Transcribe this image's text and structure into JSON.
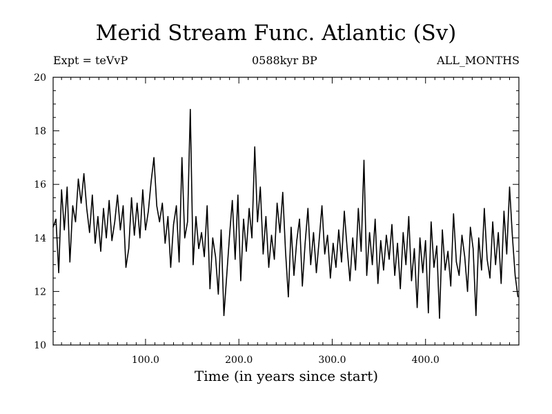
{
  "chart_data": {
    "type": "line",
    "title": "Merid Stream Func. Atlantic (Sv)",
    "subtitle_left": "Expt = teVvP",
    "subtitle_center": "0588kyr BP",
    "subtitle_right": "ALL_MONTHS",
    "xlabel": "Time (in years since start)",
    "ylabel": "",
    "xlim": [
      1,
      500
    ],
    "ylim": [
      10,
      20
    ],
    "xticks": [
      100,
      200,
      300,
      400
    ],
    "xtick_labels": [
      "100.0",
      "200.0",
      "300.0",
      "400.0"
    ],
    "yticks": [
      10,
      12,
      14,
      16,
      18,
      20
    ],
    "ytick_labels": [
      "10",
      "12",
      "14",
      "16",
      "18",
      "20"
    ],
    "grid": false,
    "series": [
      {
        "color": "#000000",
        "points": [
          [
            1,
            14.4
          ],
          [
            4,
            14.7
          ],
          [
            7,
            12.7
          ],
          [
            10,
            15.8
          ],
          [
            13,
            14.3
          ],
          [
            16,
            15.9
          ],
          [
            19,
            13.1
          ],
          [
            22,
            15.2
          ],
          [
            25,
            14.6
          ],
          [
            28,
            16.2
          ],
          [
            31,
            15.3
          ],
          [
            34,
            16.4
          ],
          [
            37,
            15.1
          ],
          [
            40,
            14.2
          ],
          [
            43,
            15.6
          ],
          [
            46,
            13.8
          ],
          [
            49,
            14.8
          ],
          [
            52,
            13.5
          ],
          [
            55,
            15.1
          ],
          [
            58,
            14.0
          ],
          [
            61,
            15.4
          ],
          [
            64,
            13.9
          ],
          [
            67,
            14.6
          ],
          [
            70,
            15.6
          ],
          [
            73,
            14.3
          ],
          [
            76,
            15.2
          ],
          [
            79,
            12.9
          ],
          [
            82,
            13.6
          ],
          [
            85,
            15.5
          ],
          [
            88,
            14.1
          ],
          [
            91,
            15.3
          ],
          [
            94,
            14.0
          ],
          [
            97,
            15.8
          ],
          [
            100,
            14.3
          ],
          [
            103,
            15.0
          ],
          [
            106,
            16.1
          ],
          [
            109,
            17.0
          ],
          [
            112,
            15.2
          ],
          [
            115,
            14.6
          ],
          [
            118,
            15.3
          ],
          [
            121,
            13.8
          ],
          [
            124,
            14.8
          ],
          [
            127,
            12.9
          ],
          [
            130,
            14.5
          ],
          [
            133,
            15.2
          ],
          [
            136,
            13.1
          ],
          [
            139,
            17.0
          ],
          [
            142,
            14.0
          ],
          [
            145,
            14.6
          ],
          [
            148,
            18.8
          ],
          [
            151,
            13.0
          ],
          [
            154,
            14.8
          ],
          [
            157,
            13.6
          ],
          [
            160,
            14.2
          ],
          [
            163,
            13.3
          ],
          [
            166,
            15.2
          ],
          [
            169,
            12.1
          ],
          [
            172,
            14.0
          ],
          [
            175,
            13.3
          ],
          [
            178,
            11.9
          ],
          [
            181,
            14.3
          ],
          [
            184,
            11.1
          ],
          [
            187,
            12.6
          ],
          [
            190,
            14.1
          ],
          [
            193,
            15.4
          ],
          [
            196,
            13.2
          ],
          [
            199,
            15.6
          ],
          [
            202,
            12.4
          ],
          [
            205,
            14.7
          ],
          [
            208,
            13.5
          ],
          [
            211,
            15.1
          ],
          [
            214,
            14.0
          ],
          [
            217,
            17.4
          ],
          [
            220,
            14.6
          ],
          [
            223,
            15.9
          ],
          [
            226,
            13.4
          ],
          [
            229,
            14.8
          ],
          [
            232,
            12.9
          ],
          [
            235,
            14.1
          ],
          [
            238,
            13.2
          ],
          [
            241,
            15.3
          ],
          [
            244,
            14.2
          ],
          [
            247,
            15.7
          ],
          [
            250,
            13.5
          ],
          [
            253,
            11.8
          ],
          [
            256,
            14.4
          ],
          [
            259,
            12.6
          ],
          [
            262,
            13.9
          ],
          [
            265,
            14.7
          ],
          [
            268,
            12.2
          ],
          [
            271,
            13.8
          ],
          [
            274,
            15.1
          ],
          [
            277,
            13.0
          ],
          [
            280,
            14.2
          ],
          [
            283,
            12.7
          ],
          [
            286,
            13.9
          ],
          [
            289,
            15.2
          ],
          [
            292,
            13.4
          ],
          [
            295,
            14.1
          ],
          [
            298,
            12.5
          ],
          [
            301,
            13.8
          ],
          [
            304,
            12.9
          ],
          [
            307,
            14.3
          ],
          [
            310,
            13.1
          ],
          [
            313,
            15.0
          ],
          [
            316,
            13.6
          ],
          [
            319,
            12.4
          ],
          [
            322,
            14.0
          ],
          [
            325,
            12.8
          ],
          [
            328,
            15.1
          ],
          [
            331,
            13.5
          ],
          [
            334,
            16.9
          ],
          [
            337,
            12.6
          ],
          [
            340,
            14.2
          ],
          [
            343,
            13.0
          ],
          [
            346,
            14.7
          ],
          [
            349,
            12.3
          ],
          [
            352,
            13.9
          ],
          [
            355,
            12.8
          ],
          [
            358,
            14.1
          ],
          [
            361,
            13.2
          ],
          [
            364,
            14.5
          ],
          [
            367,
            12.6
          ],
          [
            370,
            13.8
          ],
          [
            373,
            12.1
          ],
          [
            376,
            14.2
          ],
          [
            379,
            13.0
          ],
          [
            382,
            14.8
          ],
          [
            385,
            12.4
          ],
          [
            388,
            13.6
          ],
          [
            391,
            11.4
          ],
          [
            394,
            14.0
          ],
          [
            397,
            12.7
          ],
          [
            400,
            13.9
          ],
          [
            403,
            11.2
          ],
          [
            406,
            14.6
          ],
          [
            409,
            12.9
          ],
          [
            412,
            13.7
          ],
          [
            415,
            11.0
          ],
          [
            418,
            14.3
          ],
          [
            421,
            12.8
          ],
          [
            424,
            13.5
          ],
          [
            427,
            12.2
          ],
          [
            430,
            14.9
          ],
          [
            433,
            13.1
          ],
          [
            436,
            12.6
          ],
          [
            439,
            14.1
          ],
          [
            442,
            13.3
          ],
          [
            445,
            12.0
          ],
          [
            448,
            14.4
          ],
          [
            451,
            13.6
          ],
          [
            454,
            11.1
          ],
          [
            457,
            14.0
          ],
          [
            460,
            12.8
          ],
          [
            463,
            15.1
          ],
          [
            466,
            13.2
          ],
          [
            469,
            12.5
          ],
          [
            472,
            14.6
          ],
          [
            475,
            13.0
          ],
          [
            478,
            14.2
          ],
          [
            481,
            12.3
          ],
          [
            484,
            15.0
          ],
          [
            487,
            13.4
          ],
          [
            490,
            15.9
          ],
          [
            493,
            14.1
          ],
          [
            496,
            12.6
          ],
          [
            499,
            11.8
          ]
        ]
      }
    ]
  }
}
